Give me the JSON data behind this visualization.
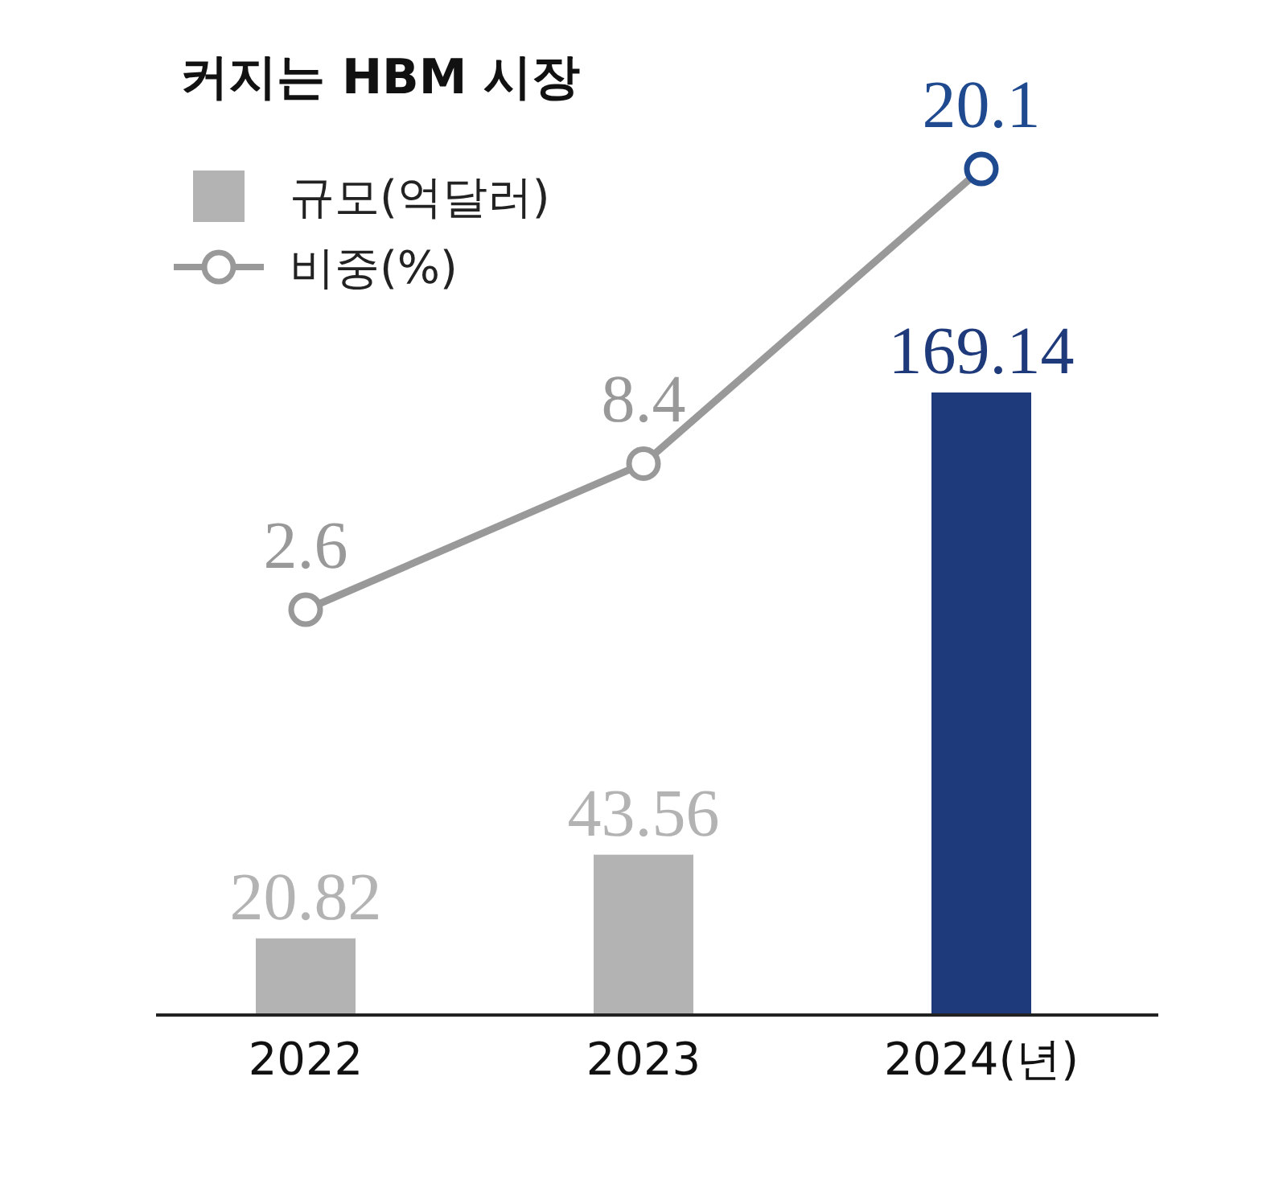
{
  "chart_data": {
    "type": "bar",
    "title": "커지는 HBM 시장",
    "categories": [
      "2022",
      "2023",
      "2024(년)"
    ],
    "data_labels": true,
    "legend": "top left",
    "marker": "circle",
    "grid": false,
    "tick_labels": "x",
    "series": [
      {
        "name": "규모(억달러)",
        "values": [
          20.82,
          43.56,
          169.14
        ],
        "colors": [
          "#b3b3b3",
          "#b3b3b3",
          "#1f3a7a"
        ]
      },
      {
        "name": "비중(%)",
        "type": "line",
        "axis": "y2",
        "color": "#999999",
        "colors": [
          "#999999",
          "#999999",
          "#1f4a8f"
        ],
        "values": [
          2.6,
          8.4,
          20.1
        ]
      }
    ]
  }
}
